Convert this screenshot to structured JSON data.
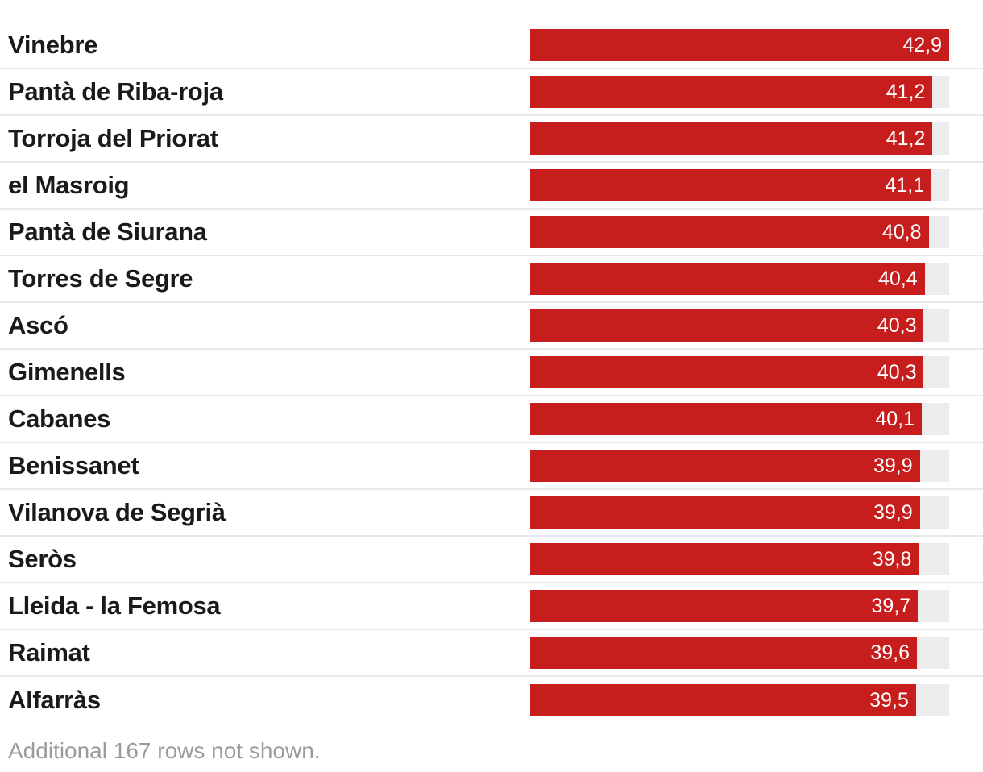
{
  "chart_data": {
    "type": "bar",
    "orientation": "horizontal",
    "title": "",
    "xlabel": "",
    "ylabel": "",
    "xlim": [
      0,
      42.9
    ],
    "grid": "off",
    "legend": "none",
    "bar_color": "#c71e1d",
    "track_color": "#ececec",
    "label_color": "#1a1a1a",
    "value_label_color": "#ffffff",
    "separator_color": "#e9e9e9",
    "categories": [
      "Vinebre",
      "Pantà de Riba-roja",
      "Torroja del Priorat",
      "el Masroig",
      "Pantà de Siurana",
      "Torres de Segre",
      "Ascó",
      "Gimenells",
      "Cabanes",
      "Benissanet",
      "Vilanova de Segrià",
      "Seròs",
      "Lleida - la Femosa",
      "Raimat",
      "Alfarràs"
    ],
    "values": [
      42.9,
      41.2,
      41.2,
      41.1,
      40.8,
      40.4,
      40.3,
      40.3,
      40.1,
      39.9,
      39.9,
      39.8,
      39.7,
      39.6,
      39.5
    ],
    "value_labels": [
      "42,9",
      "41,2",
      "41,2",
      "41,1",
      "40,8",
      "40,4",
      "40,3",
      "40,3",
      "40,1",
      "39,9",
      "39,9",
      "39,8",
      "39,7",
      "39,6",
      "39,5"
    ]
  },
  "footer": {
    "note": "Additional 167 rows not shown."
  }
}
